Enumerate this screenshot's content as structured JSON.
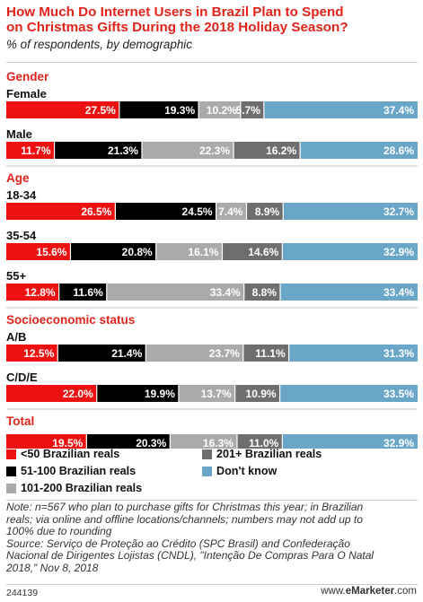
{
  "title_line1": "How Much Do Internet Users in Brazil Plan to Spend",
  "title_line2": "on Christmas Gifts During the 2018 Holiday Season?",
  "subtitle": "% of respondents, by demographic",
  "chart_data": {
    "type": "bar",
    "orientation": "horizontal",
    "stacked": true,
    "normalized_percent": true,
    "colors": {
      "series_1": "#ee1111",
      "series_2": "#000000",
      "series_3": "#aaaaaa",
      "series_4": "#6e6e6e",
      "series_5": "#6aa6c8"
    },
    "series": [
      {
        "name": "<50 Brazilian reals"
      },
      {
        "name": "51-100 Brazilian reals"
      },
      {
        "name": "101-200 Brazilian reals"
      },
      {
        "name": "201+ Brazilian reals"
      },
      {
        "name": "Don't know"
      }
    ],
    "groups": [
      {
        "header": "Gender",
        "rows": [
          {
            "label": "Female",
            "values": [
              27.5,
              19.3,
              10.2,
              5.7,
              37.4
            ]
          },
          {
            "label": "Male",
            "values": [
              11.7,
              21.3,
              22.3,
              16.2,
              28.6
            ]
          }
        ]
      },
      {
        "header": "Age",
        "rows": [
          {
            "label": "18-34",
            "values": [
              26.5,
              24.5,
              7.4,
              8.9,
              32.7
            ]
          },
          {
            "label": "35-54",
            "values": [
              15.6,
              20.8,
              16.1,
              14.6,
              32.9
            ]
          },
          {
            "label": "55+",
            "values": [
              12.8,
              11.6,
              33.4,
              8.8,
              33.4
            ]
          }
        ]
      },
      {
        "header": "Socioeconomic status",
        "rows": [
          {
            "label": "A/B",
            "values": [
              12.5,
              21.4,
              23.7,
              11.1,
              31.3
            ]
          },
          {
            "label": "C/D/E",
            "values": [
              22.0,
              19.9,
              13.7,
              10.9,
              33.5
            ]
          }
        ]
      },
      {
        "header": "Total",
        "rows": [
          {
            "label": "",
            "values": [
              19.5,
              20.3,
              16.3,
              11.0,
              32.9
            ]
          }
        ]
      }
    ]
  },
  "legend": [
    {
      "label": "<50 Brazilian reals",
      "color": "#ee1111"
    },
    {
      "label": "51-100 Brazilian reals",
      "color": "#000000"
    },
    {
      "label": "101-200 Brazilian reals",
      "color": "#aaaaaa"
    },
    {
      "label": "201+ Brazilian reals",
      "color": "#6e6e6e"
    },
    {
      "label": "Don't know",
      "color": "#6aa6c8"
    }
  ],
  "note_line1": "Note: n=567 who plan to purchase gifts for Christmas this year; in Brazilian",
  "note_line2": "reals; via online and offline locations/channels; numbers may not add up to",
  "note_line3": "100% due to rounding",
  "source_line1": "Source: Serviço de Proteção ao Crédito (SPC Brasil) and Confederação",
  "source_line2": "Nacional de Dirigentes Lojistas (CNDL), \"Intenção De Compras Para O Natal",
  "source_line3": "2018,\" Nov 8, 2018",
  "chart_id": "244139",
  "brand_prefix": "www.",
  "brand_name": "eMarketer",
  "brand_suffix": ".com"
}
